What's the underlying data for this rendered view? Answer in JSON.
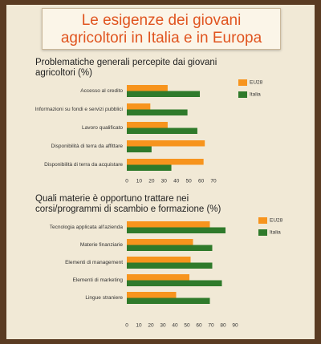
{
  "header": {
    "title": [
      "Le esigenze dei giovani",
      "agricoltori in Italia e in Europa"
    ]
  },
  "chart_data": [
    {
      "type": "barh",
      "title": "Problematiche generali percepite dai giovani agricoltori (%)",
      "categories": [
        "Accesso al credito",
        "Informazioni su fondi e servizi pubblici",
        "Lavoro qualificato",
        "Disponibilità di terra da affittare",
        "Disponibilità di terra da acquistare"
      ],
      "series": [
        {
          "name": "EU28",
          "color": "#f7941d",
          "values": [
            33,
            19,
            33,
            63,
            62
          ]
        },
        {
          "name": "Italia",
          "color": "#2f7a2b",
          "values": [
            59,
            49,
            57,
            20,
            36
          ]
        }
      ],
      "xlim": [
        0,
        70
      ],
      "xticks": [
        0,
        10,
        20,
        30,
        40,
        50,
        60,
        70
      ],
      "grid": false,
      "legend": "upper right"
    },
    {
      "type": "barh",
      "title": "Quali materie è opportuno trattare nei corsi/programmi di scambio e formazione (%)",
      "categories": [
        "Tecnologia applicata all'azienda",
        "Materie finanziarie",
        "Elementi di management",
        "Elementi di marketing",
        "Lingue straniere"
      ],
      "series": [
        {
          "name": "EU28",
          "color": "#f7941d",
          "values": [
            69,
            55,
            53,
            52,
            41
          ]
        },
        {
          "name": "Italia",
          "color": "#2f7a2b",
          "values": [
            82,
            71,
            71,
            79,
            69
          ]
        }
      ],
      "xlim": [
        0,
        90
      ],
      "xticks": [
        0,
        10,
        20,
        30,
        40,
        50,
        60,
        70,
        80,
        90
      ],
      "grid": false,
      "legend": "upper right"
    }
  ]
}
